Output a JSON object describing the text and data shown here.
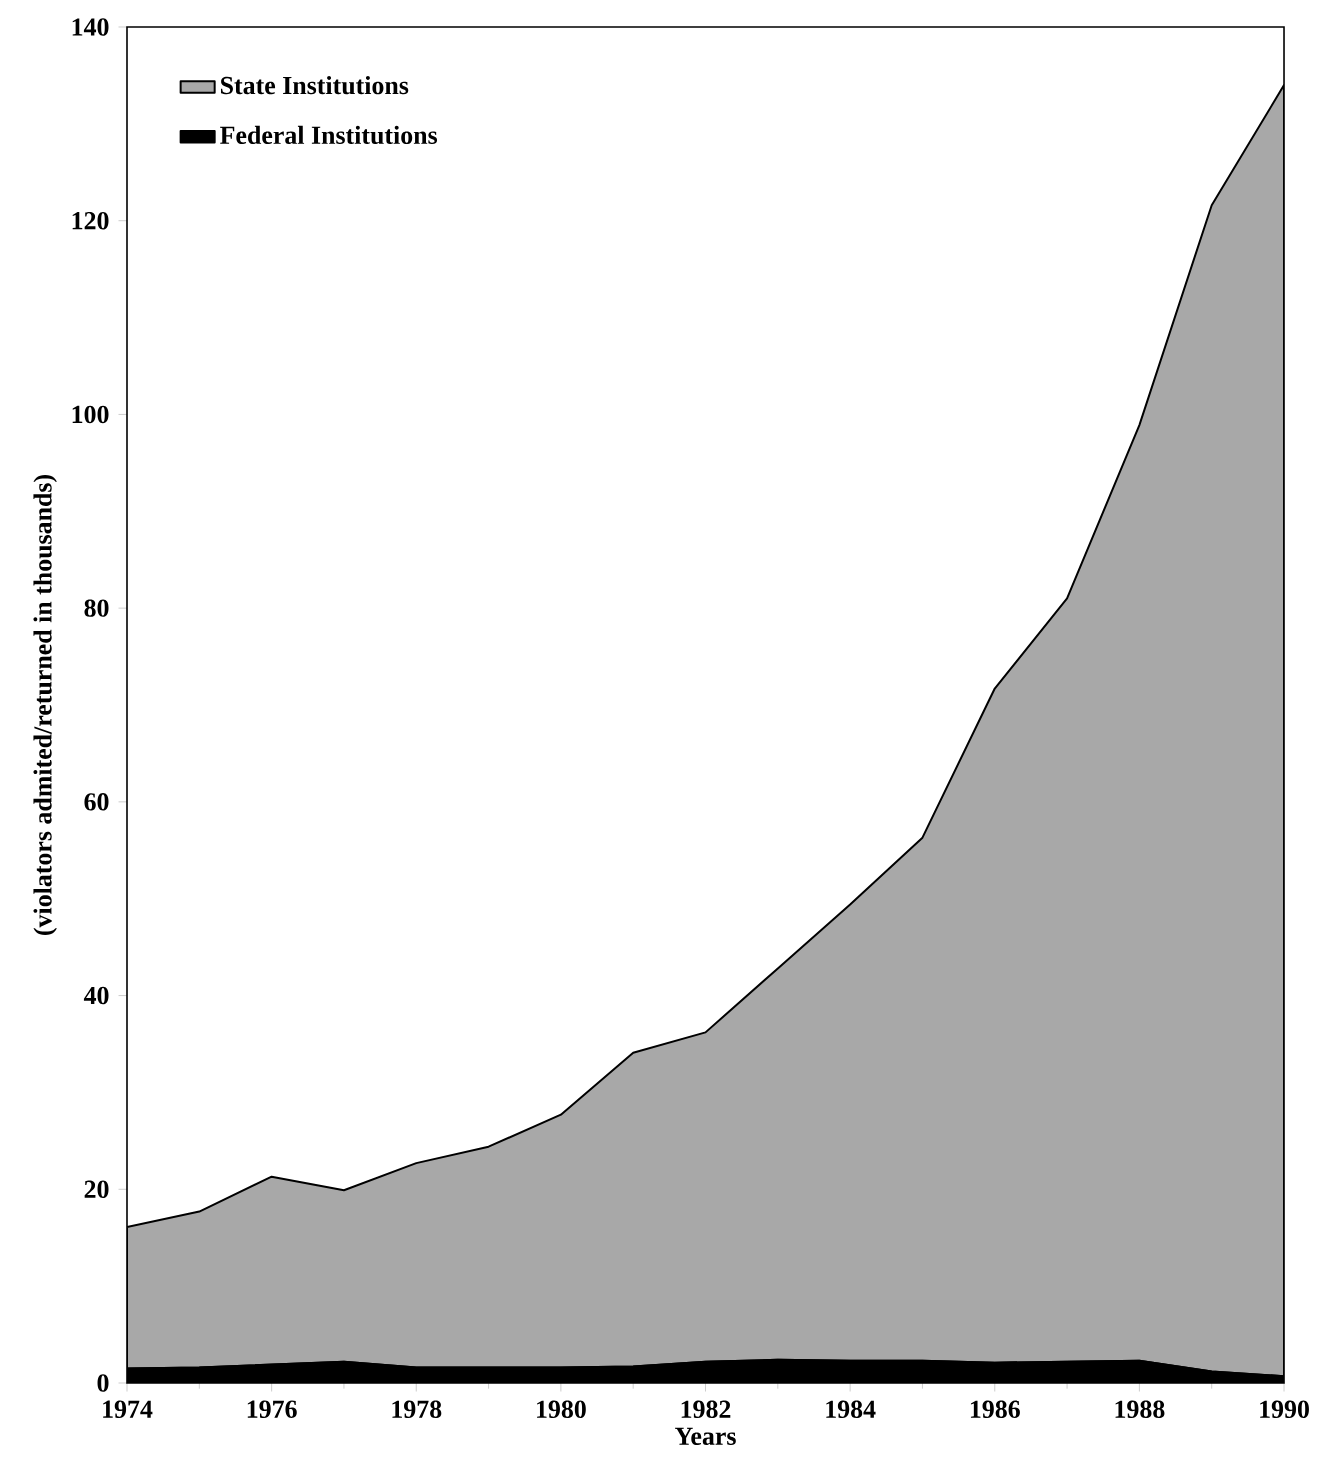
{
  "chart_data": {
    "type": "area",
    "stacked": true,
    "xlabel": "Years",
    "ylabel": "(violators admited/returned in thousands)",
    "x": [
      1974,
      1975,
      1976,
      1977,
      1978,
      1979,
      1980,
      1981,
      1982,
      1983,
      1984,
      1985,
      1986,
      1987,
      1988,
      1989,
      1990
    ],
    "series": [
      {
        "name": "Federal Institutions",
        "color": "#000000",
        "values": [
          1.5,
          1.6,
          1.9,
          2.2,
          1.6,
          1.6,
          1.6,
          1.7,
          2.2,
          2.4,
          2.3,
          2.3,
          2.1,
          2.2,
          2.3,
          1.2,
          0.7
        ]
      },
      {
        "name": "State Institutions",
        "color": "#a8a8a8",
        "values": [
          14.6,
          16.1,
          19.4,
          17.7,
          21.1,
          22.8,
          26.1,
          32.4,
          34.0,
          40.4,
          47.1,
          54.0,
          69.6,
          78.8,
          96.6,
          120.4,
          133.3
        ]
      }
    ],
    "xlim": [
      1974,
      1990
    ],
    "ylim": [
      0,
      140
    ],
    "xticks": [
      1974,
      1976,
      1978,
      1980,
      1982,
      1984,
      1986,
      1988,
      1990
    ],
    "yticks": [
      0,
      20,
      40,
      60,
      80,
      100,
      120,
      140
    ],
    "legend": "top left"
  }
}
